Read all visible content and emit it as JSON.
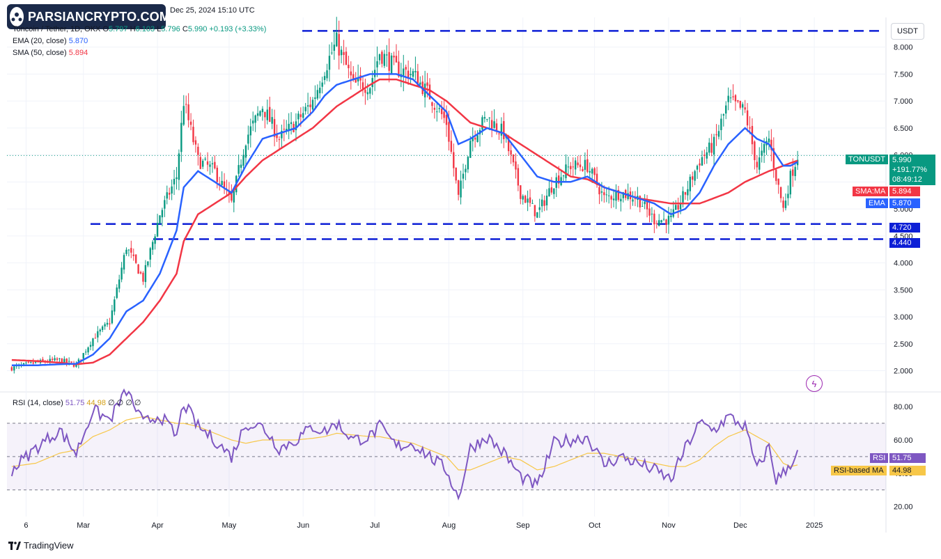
{
  "header": {
    "symbol_line": "Toncoin / Tether, 1D, OKX",
    "open_label": "O",
    "open": "5.797",
    "high_label": "H",
    "high": "6.103",
    "low_label": "L",
    "low": "5.796",
    "close_label": "C",
    "close": "5.990",
    "change": "+0.193 (+3.33%)",
    "datetime": "Dec 25, 2024 15:10 UTC"
  },
  "logo_text": "PARSIANCRYPTO.COM",
  "currency": "USDT",
  "indicators": {
    "ema_label": "EMA (20, close)",
    "ema_value": "5.870",
    "sma_label": "SMA (50, close)",
    "sma_value": "5.894",
    "rsi_label": "RSI (14, close)",
    "rsi_value": "51.75",
    "rsi_ma_value": "44.98",
    "rsi_extra": "∅ ∅ ∅ ∅"
  },
  "price_tags": {
    "symbol": "TONUSDT",
    "price": "5.990",
    "change_pct": "+191.77%",
    "countdown": "08:49:12",
    "sma_label": "SMA:MA",
    "sma": "5.894",
    "ema_label": "EMA",
    "ema": "5.870",
    "level1": "4.720",
    "level2": "4.440",
    "rsi_label": "RSI",
    "rsi": "51.75",
    "rsi_ma_label": "RSI-based MA",
    "rsi_ma": "44.98"
  },
  "footer_brand": "TradingView",
  "colors": {
    "up": "#089981",
    "down": "#f23645",
    "ema": "#2962ff",
    "sma": "#f23645",
    "rsi": "#7e57c2",
    "rsi_ma": "#f7c748",
    "level": "#0d1fd6"
  },
  "chart_data": {
    "type": "candlestick",
    "main_pane": {
      "y_ticks": [
        2.0,
        2.5,
        3.0,
        3.5,
        4.0,
        4.5,
        5.0,
        5.5,
        6.0,
        6.5,
        7.0,
        7.5,
        8.0
      ],
      "y_tick_labels": [
        "2.000",
        "2.500",
        "3.000",
        "3.500",
        "4.000",
        "4.500",
        "5.000",
        "5.500",
        "6.000",
        "6.500",
        "7.000",
        "7.500",
        "8.000"
      ],
      "ylim": [
        1.62,
        8.55
      ],
      "x_ticks": [
        "6",
        "Mar",
        "Apr",
        "May",
        "Jun",
        "Jul",
        "Aug",
        "Sep",
        "Oct",
        "Nov",
        "Dec",
        "2025"
      ],
      "x_tick_dates": [
        "2024-02-06",
        "2024-03-01",
        "2024-04-01",
        "2024-05-01",
        "2024-06-01",
        "2024-07-01",
        "2024-08-01",
        "2024-09-01",
        "2024-10-01",
        "2024-11-01",
        "2024-12-01",
        "2025-01-01"
      ],
      "horizontal_levels": [
        8.3,
        4.72,
        4.44
      ],
      "close_series_dates": [
        "2024-01-31",
        "2024-02-10",
        "2024-02-20",
        "2024-02-27",
        "2024-03-05",
        "2024-03-12",
        "2024-03-19",
        "2024-03-26",
        "2024-04-02",
        "2024-04-09",
        "2024-04-12",
        "2024-04-18",
        "2024-04-25",
        "2024-05-02",
        "2024-05-08",
        "2024-05-15",
        "2024-05-22",
        "2024-05-29",
        "2024-06-05",
        "2024-06-10",
        "2024-06-15",
        "2024-06-22",
        "2024-06-29",
        "2024-07-03",
        "2024-07-10",
        "2024-07-17",
        "2024-07-24",
        "2024-07-31",
        "2024-08-05",
        "2024-08-10",
        "2024-08-17",
        "2024-08-24",
        "2024-08-31",
        "2024-09-07",
        "2024-09-14",
        "2024-09-21",
        "2024-09-28",
        "2024-10-05",
        "2024-10-12",
        "2024-10-19",
        "2024-10-26",
        "2024-11-02",
        "2024-11-08",
        "2024-11-14",
        "2024-11-20",
        "2024-11-26",
        "2024-12-03",
        "2024-12-08",
        "2024-12-13",
        "2024-12-16",
        "2024-12-19",
        "2024-12-22",
        "2024-12-25"
      ],
      "close_series": [
        2.05,
        2.15,
        2.2,
        2.1,
        2.6,
        2.9,
        4.3,
        3.7,
        4.9,
        5.6,
        7.0,
        5.9,
        5.7,
        5.1,
        6.3,
        6.9,
        6.3,
        6.6,
        7.0,
        7.6,
        8.1,
        7.3,
        7.3,
        7.9,
        7.6,
        7.5,
        7.1,
        6.6,
        5.2,
        6.3,
        6.7,
        6.4,
        5.3,
        4.9,
        5.5,
        5.8,
        5.8,
        5.2,
        5.3,
        5.2,
        4.8,
        4.8,
        5.3,
        5.9,
        6.2,
        7.0,
        6.8,
        5.8,
        6.3,
        5.6,
        5.0,
        5.6,
        5.99
      ],
      "ema_20": [
        2.1,
        2.1,
        2.12,
        2.13,
        2.3,
        2.6,
        3.1,
        3.3,
        3.8,
        4.6,
        5.4,
        5.7,
        5.5,
        5.3,
        5.8,
        6.3,
        6.4,
        6.5,
        6.8,
        7.1,
        7.3,
        7.4,
        7.5,
        7.5,
        7.5,
        7.4,
        7.1,
        6.8,
        6.2,
        6.3,
        6.5,
        6.4,
        6.0,
        5.6,
        5.5,
        5.5,
        5.6,
        5.4,
        5.3,
        5.2,
        5.1,
        4.9,
        5.0,
        5.3,
        5.8,
        6.2,
        6.5,
        6.3,
        6.2,
        6.0,
        5.8,
        5.8,
        5.87
      ],
      "sma_50": [
        2.2,
        2.18,
        2.15,
        2.12,
        2.15,
        2.3,
        2.6,
        2.9,
        3.3,
        3.8,
        4.4,
        4.9,
        5.1,
        5.3,
        5.6,
        5.9,
        6.1,
        6.3,
        6.5,
        6.7,
        6.9,
        7.1,
        7.3,
        7.4,
        7.4,
        7.3,
        7.2,
        7.0,
        6.8,
        6.6,
        6.5,
        6.4,
        6.2,
        6.0,
        5.8,
        5.6,
        5.55,
        5.4,
        5.3,
        5.2,
        5.15,
        5.1,
        5.1,
        5.1,
        5.2,
        5.3,
        5.5,
        5.6,
        5.7,
        5.75,
        5.8,
        5.85,
        5.894
      ]
    },
    "rsi_pane": {
      "y_ticks": [
        20,
        40,
        60,
        80
      ],
      "y_tick_labels": [
        "20.00",
        "40.00",
        "60.00",
        "80.00"
      ],
      "ylim": [
        14,
        88
      ],
      "band": [
        30,
        70
      ],
      "midline": 50,
      "rsi": [
        42,
        55,
        66,
        52,
        78,
        72,
        90,
        70,
        75,
        62,
        82,
        68,
        60,
        50,
        70,
        68,
        55,
        60,
        68,
        65,
        70,
        60,
        62,
        68,
        56,
        58,
        50,
        42,
        25,
        55,
        62,
        52,
        38,
        32,
        58,
        60,
        62,
        45,
        50,
        46,
        42,
        36,
        55,
        70,
        66,
        74,
        68,
        42,
        56,
        36,
        40,
        46,
        51.75
      ],
      "rsi_ma": [
        44,
        46,
        52,
        54,
        62,
        66,
        72,
        74,
        72,
        70,
        70,
        68,
        64,
        60,
        58,
        60,
        60,
        60,
        61,
        62,
        64,
        63,
        62,
        62,
        60,
        58,
        54,
        50,
        42,
        42,
        46,
        50,
        48,
        42,
        44,
        48,
        52,
        52,
        50,
        48,
        46,
        44,
        44,
        48,
        56,
        62,
        66,
        62,
        58,
        52,
        46,
        44,
        44.98
      ]
    }
  }
}
